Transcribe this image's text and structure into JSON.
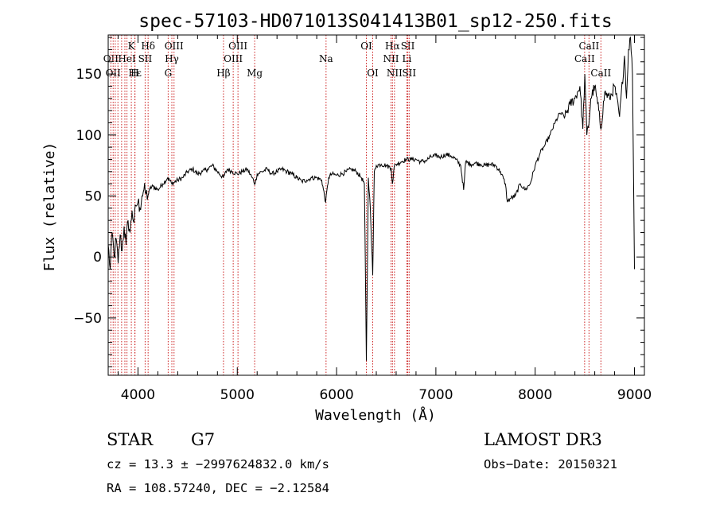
{
  "chart_data": {
    "type": "line",
    "title": "spec-57103-HD071013S041413B01_sp12-250.fits",
    "xlabel": "Wavelength (Å)",
    "ylabel": "Flux (relative)",
    "xlim": [
      3700,
      9100
    ],
    "ylim": [
      -97,
      182
    ],
    "x_ticks": [
      4000,
      5000,
      6000,
      7000,
      8000,
      9000
    ],
    "y_ticks": [
      -50,
      0,
      50,
      100,
      150
    ],
    "grid": false,
    "series": [
      {
        "x": [
          3700,
          3720,
          3740,
          3760,
          3780,
          3800,
          3820,
          3840,
          3860,
          3880,
          3900,
          3920,
          3940,
          3960,
          3980,
          4000,
          4020,
          4040,
          4060,
          4080,
          4100,
          4120,
          4150,
          4200,
          4250,
          4300,
          4340,
          4400,
          4450,
          4500,
          4550,
          4600,
          4650,
          4700,
          4750,
          4800,
          4860,
          4900,
          4950,
          5000,
          5050,
          5100,
          5150,
          5180,
          5200,
          5250,
          5300,
          5350,
          5400,
          5450,
          5500,
          5550,
          5600,
          5650,
          5700,
          5750,
          5800,
          5850,
          5890,
          5920,
          5950,
          6000,
          6050,
          6100,
          6150,
          6200,
          6250,
          6280,
          6300,
          6320,
          6340,
          6364,
          6380,
          6400,
          6450,
          6500,
          6550,
          6563,
          6580,
          6600,
          6650,
          6700,
          6750,
          6800,
          6850,
          6900,
          6950,
          7000,
          7050,
          7100,
          7150,
          7200,
          7250,
          7280,
          7300,
          7350,
          7400,
          7450,
          7500,
          7550,
          7600,
          7650,
          7700,
          7720,
          7750,
          7800,
          7850,
          7900,
          7950,
          8000,
          8050,
          8100,
          8150,
          8200,
          8250,
          8300,
          8350,
          8400,
          8450,
          8480,
          8500,
          8520,
          8542,
          8560,
          8600,
          8640,
          8662,
          8700,
          8750,
          8800,
          8850,
          8900,
          8920,
          8940,
          8960,
          8980,
          9000
        ],
        "y": [
          10,
          -10,
          20,
          0,
          15,
          -5,
          18,
          5,
          25,
          10,
          30,
          20,
          38,
          28,
          42,
          45,
          40,
          50,
          55,
          52,
          50,
          56,
          58,
          55,
          60,
          65,
          60,
          63,
          65,
          70,
          72,
          68,
          70,
          72,
          75,
          70,
          65,
          72,
          70,
          68,
          70,
          72,
          65,
          60,
          68,
          70,
          72,
          68,
          70,
          72,
          70,
          68,
          65,
          62,
          63,
          65,
          65,
          63,
          45,
          65,
          68,
          67,
          68,
          70,
          72,
          70,
          65,
          60,
          -85,
          65,
          40,
          -15,
          70,
          75,
          76,
          75,
          73,
          60,
          74,
          76,
          78,
          80,
          80,
          80,
          78,
          79,
          82,
          83,
          82,
          84,
          83,
          80,
          75,
          55,
          78,
          76,
          77,
          76,
          75,
          76,
          75,
          70,
          60,
          45,
          48,
          50,
          60,
          55,
          60,
          75,
          85,
          92,
          100,
          110,
          118,
          115,
          125,
          130,
          140,
          105,
          150,
          100,
          110,
          130,
          140,
          120,
          105,
          135,
          130,
          140,
          115,
          165,
          130,
          170,
          180,
          150,
          -10
        ],
        "color": "#000000"
      }
    ],
    "line_markers": [
      {
        "wl": 3727,
        "label": "OII",
        "row": 2
      },
      {
        "wl": 3750,
        "label": "OII",
        "row": 3
      },
      {
        "wl": 3771,
        "label": "",
        "row": 0
      },
      {
        "wl": 3798,
        "label": "",
        "row": 0
      },
      {
        "wl": 3835,
        "label": "",
        "row": 0
      },
      {
        "wl": 3868,
        "label": "",
        "row": 0
      },
      {
        "wl": 3889,
        "label": "HeI",
        "row": 2
      },
      {
        "wl": 3933,
        "label": "K",
        "row": 1
      },
      {
        "wl": 3968,
        "label": "H",
        "row": 3
      },
      {
        "wl": 3970,
        "label": "Hε",
        "row": 3
      },
      {
        "wl": 4072,
        "label": "SII",
        "row": 2
      },
      {
        "wl": 4102,
        "label": "Hδ",
        "row": 1
      },
      {
        "wl": 4304,
        "label": "G",
        "row": 3
      },
      {
        "wl": 4341,
        "label": "Hγ",
        "row": 2
      },
      {
        "wl": 4363,
        "label": "OIII",
        "row": 1
      },
      {
        "wl": 4861,
        "label": "Hβ",
        "row": 3
      },
      {
        "wl": 4959,
        "label": "OIII",
        "row": 2
      },
      {
        "wl": 5007,
        "label": "OIII",
        "row": 1
      },
      {
        "wl": 5175,
        "label": "Mg",
        "row": 3
      },
      {
        "wl": 5894,
        "label": "Na",
        "row": 2
      },
      {
        "wl": 6300,
        "label": "OI",
        "row": 1
      },
      {
        "wl": 6364,
        "label": "OI",
        "row": 3
      },
      {
        "wl": 6548,
        "label": "NII",
        "row": 2
      },
      {
        "wl": 6563,
        "label": "Hα",
        "row": 1
      },
      {
        "wl": 6583,
        "label": "NII",
        "row": 3
      },
      {
        "wl": 6708,
        "label": "Li",
        "row": 2
      },
      {
        "wl": 6717,
        "label": "SII",
        "row": 1
      },
      {
        "wl": 6731,
        "label": "SII",
        "row": 3
      },
      {
        "wl": 8498,
        "label": "CaII",
        "row": 2
      },
      {
        "wl": 8542,
        "label": "CaII",
        "row": 1
      },
      {
        "wl": 8662,
        "label": "CaII",
        "row": 3
      }
    ],
    "marker_color": "#cc2222"
  },
  "info": {
    "object_type": "STAR",
    "subclass": "G7",
    "survey": "LAMOST DR3",
    "cz": "cz = 13.3 ± −2997624832.0 km/s",
    "obs_date": "Obs−Date: 20150321",
    "radec": "RA = 108.57240, DEC =  −2.12584"
  }
}
